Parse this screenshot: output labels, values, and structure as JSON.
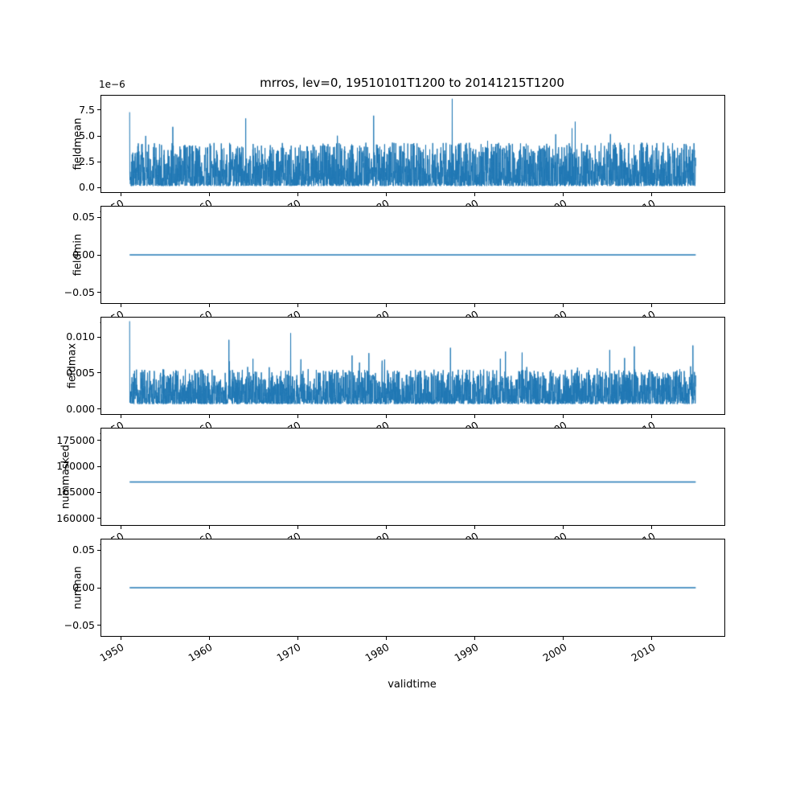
{
  "figure": {
    "title": "mrros, lev=0, 19510101T1200 to 20141215T1200",
    "xlabel": "validtime",
    "offset_text": "1e−6",
    "line_color": "#1f77b4",
    "background": "#ffffff",
    "grid": false,
    "legend": "none",
    "xlim": [
      1947.8,
      2018.2
    ],
    "xticks": [
      1950,
      1960,
      1970,
      1980,
      1990,
      2000,
      2010
    ],
    "xtick_labels": [
      "1950",
      "1960",
      "1970",
      "1980",
      "1990",
      "2000",
      "2010"
    ]
  },
  "chart_data": [
    {
      "type": "line",
      "title": "mrros, lev=0, 19510101T1200 to 20141215T1200",
      "ylabel": "fieldmean",
      "scale_note": "y values in units of 1e-6",
      "x_range_years": [
        1951.0,
        2014.96
      ],
      "ylim": [
        -0.45,
        8.9
      ],
      "yticks": [
        0.0,
        2.5,
        5.0,
        7.5
      ],
      "ytick_labels": [
        "0.0",
        "2.5",
        "5.0",
        "7.5"
      ],
      "series_kind": "noise",
      "noise": {
        "seed": 101,
        "n": 3200,
        "base": 0.15,
        "amp": 4.2,
        "pow": 2.1,
        "spike_prob": 0.015,
        "spike_amp": 3.4,
        "max": 8.6,
        "first": 7.3,
        "peak_at": 0.57
      }
    },
    {
      "type": "line",
      "ylabel": "fieldmin",
      "x_range_years": [
        1951.0,
        2014.96
      ],
      "ylim": [
        -0.064,
        0.064
      ],
      "yticks": [
        0.05,
        0.0,
        -0.05
      ],
      "ytick_labels": [
        "0.05",
        "0.00",
        "−0.05"
      ],
      "series_kind": "constant",
      "constant_value": 0.0
    },
    {
      "type": "line",
      "ylabel": "fieldmax",
      "x_range_years": [
        1951.0,
        2014.96
      ],
      "ylim": [
        -0.0007,
        0.0127
      ],
      "yticks": [
        0.0,
        0.005,
        0.01
      ],
      "ytick_labels": [
        "0.000",
        "0.005",
        "0.010"
      ],
      "series_kind": "noise",
      "noise": {
        "seed": 202,
        "n": 3200,
        "base": 0.0007,
        "amp": 0.0048,
        "pow": 2.1,
        "spike_prob": 0.02,
        "spike_amp": 0.0055,
        "max": 0.0122,
        "first": 0.0122
      }
    },
    {
      "type": "line",
      "ylabel": "nummasked",
      "x_range_years": [
        1951.0,
        2014.96
      ],
      "ylim": [
        158700,
        177300
      ],
      "yticks": [
        160000,
        165000,
        170000,
        175000
      ],
      "ytick_labels": [
        "160000",
        "165000",
        "170000",
        "175000"
      ],
      "series_kind": "constant",
      "constant_value": 167000
    },
    {
      "type": "line",
      "ylabel": "numnan",
      "x_range_years": [
        1951.0,
        2014.96
      ],
      "ylim": [
        -0.064,
        0.064
      ],
      "yticks": [
        0.05,
        0.0,
        -0.05
      ],
      "ytick_labels": [
        "0.05",
        "0.00",
        "−0.05"
      ],
      "series_kind": "constant",
      "constant_value": 0.0
    }
  ]
}
